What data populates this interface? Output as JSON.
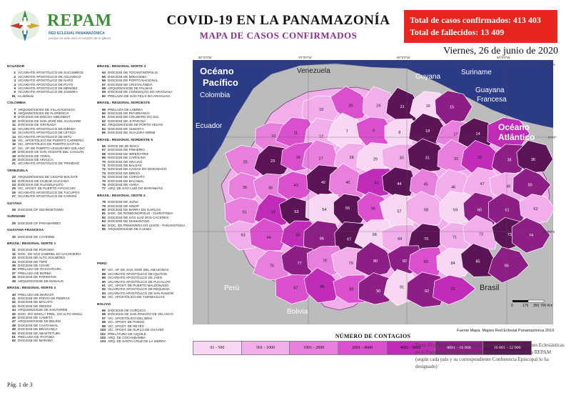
{
  "header": {
    "brand": "REPAM",
    "brand_sub": "RED ECLESIAL PANAMAZÓNICA",
    "brand_tag": "porque en todo está el corazón de la iglesia",
    "title": "COVID-19 EN LA PANAMAZONÍA",
    "subtitle": "MAPA DE CASOS CONFIRMADOS",
    "confirmed_label": "Total de casos confirmados:",
    "confirmed_value": "413 403",
    "deaths_label": "Total de fallecidos:",
    "deaths_value": "13 409",
    "date": "Viernes, 26 de junio de 2020"
  },
  "colors": {
    "ocean": "#2b3b86",
    "land_other": "#bcbcbc",
    "header_box": "#e8261f",
    "title_purple": "#8a2f8f",
    "bins": [
      "#f7d7f2",
      "#f1aeea",
      "#e87fdc",
      "#d94fcd",
      "#c02bb8",
      "#8c1e86",
      "#5b1455"
    ]
  },
  "list_col1": [
    {
      "region": "ECUADOR",
      "items": [
        {
          "n": "1",
          "name": "VICARIATO APOSTÓLICO DE SUCUMBÍOS"
        },
        {
          "n": "2",
          "name": "VICARIATO APOSTÓLICO DE AGUARICO"
        },
        {
          "n": "3",
          "name": "VICARIATO APOSTÓLICO DE NAPO"
        },
        {
          "n": "4",
          "name": "VICARIATO APOSTÓLICO DE PUYO"
        },
        {
          "n": "5",
          "name": "VICARIATO APOSTÓLICO DE MÉNDEZ"
        },
        {
          "n": "6",
          "name": "VICARIATO APOSTÓLICO DE ZAMORA"
        },
        {
          "n": "81",
          "name": "no definido"
        }
      ]
    },
    {
      "region": "COLOMBIA",
      "items": [
        {
          "n": "7",
          "name": "ARQUIDIÓCESIS DE VILLAVICENCIO"
        },
        {
          "n": "8",
          "name": "ARQUIDIÓCESIS DE FLORENCIA"
        },
        {
          "n": "9",
          "name": "DIÓCESIS DE MOCOA-SIBUNDOY"
        },
        {
          "n": "10",
          "name": "DIÓCESIS DE SAN JOSÉ DEL GUAVIARE"
        },
        {
          "n": "11",
          "name": "DIÓCESIS DE GRANADA"
        },
        {
          "n": "12",
          "name": "VICARIATO APOSTÓLICO DE INÍRIDA"
        },
        {
          "n": "13",
          "name": "VICARIATO APOSTÓLICO DE LETICIA"
        },
        {
          "n": "14",
          "name": "VICARIATO APOSTÓLICO DE MITÚ"
        },
        {
          "n": "15",
          "name": "VIC. APOSTÓLICO DE PUERTO CARREÑO"
        },
        {
          "n": "16",
          "name": "VIC. APOSTÓLICO DE PUERTO GAITÁN"
        },
        {
          "n": "17",
          "name": "VIC. AP. DE PUERTO LEGUÍZAMO-SOLANO"
        },
        {
          "n": "18",
          "name": "DIÓCESIS DE SAN VICENTE DEL CAGUÁN"
        },
        {
          "n": "19",
          "name": "DIÓCESIS DE YOPAL"
        },
        {
          "n": "20",
          "name": "DIÓCESIS DE ARAUCA"
        },
        {
          "n": "21",
          "name": "VICARIATO APOSTÓLICO DE TRINIDAD"
        }
      ]
    },
    {
      "region": "VENEZUELA",
      "items": [
        {
          "n": "22",
          "name": "ARQUIDIÓCESIS DE CIUDAD BOLÍVAR"
        },
        {
          "n": "23",
          "name": "DIÓCESIS DE CIUDAD GUAYANA"
        },
        {
          "n": "24",
          "name": "DIÓCESIS DE GUASDUALITO"
        },
        {
          "n": "25",
          "name": "VIC. APOST. DE PUERTO AYACUCHO"
        },
        {
          "n": "26",
          "name": "VICARIATO APOSTÓLICO DE TUCUPITA"
        },
        {
          "n": "27",
          "name": "VICARIATO APOSTÓLICO DE CARONÍ"
        }
      ]
    },
    {
      "region": "GUYANA",
      "items": [
        {
          "n": "28",
          "name": "DIOCESE OF GEORGETOWN"
        }
      ]
    },
    {
      "region": "SURINAME",
      "items": [
        {
          "n": "29",
          "name": "DIOCESE OF PARAMARIBO"
        }
      ]
    },
    {
      "region": "GUAYANA FRANCESA",
      "items": [
        {
          "n": "30",
          "name": "DIOCESE DE CAYENNE"
        }
      ]
    },
    {
      "region": "BRASIL: REGIONAL NORTE 1",
      "items": [
        {
          "n": "31",
          "name": "DIOCESE DE RORAIMA"
        },
        {
          "n": "32",
          "name": "DIOC. DE SÃO GABRIEL DA CACHOEIRA"
        },
        {
          "n": "33",
          "name": "DIOCESE DE ALTO SOLIMÕES"
        },
        {
          "n": "34",
          "name": "DIOCESE DE TEFÉ"
        },
        {
          "n": "35",
          "name": "DIOCESE DE COARI"
        },
        {
          "n": "36",
          "name": "PRELAZIA DE ITACOATIARA"
        },
        {
          "n": "37",
          "name": "PRELAZIA DE BORBA"
        },
        {
          "n": "38",
          "name": "DIOCESE DE PARINTINS"
        },
        {
          "n": "39",
          "name": "ARQUIDIOCESE DE MANAUS"
        }
      ]
    },
    {
      "region": "BRASIL: REGIONAL NORTE 2",
      "items": [
        {
          "n": "40",
          "name": "PRELAZIA DE MARAJÓ"
        },
        {
          "n": "41",
          "name": "DIOCESE DE PONTA DE PEDRAS"
        },
        {
          "n": "42",
          "name": "DIOCESE DE MACAPÁ"
        },
        {
          "n": "43",
          "name": "DIOCESE DE ÓBIDOS"
        },
        {
          "n": "44",
          "name": "ARQUIDIOCESE DE SANTARÉM"
        },
        {
          "n": "45",
          "name": "DIOC. DO XINGU / PREL. DO ALTO XINGU"
        },
        {
          "n": "46",
          "name": "DIOCESE DE CAMETÁ"
        },
        {
          "n": "47",
          "name": "ARQUIDIOCESE DE BELÉM"
        },
        {
          "n": "48",
          "name": "DIOCESE DE CASTANHAL"
        },
        {
          "n": "49",
          "name": "DIOCESE DE BRAGANÇA"
        },
        {
          "n": "50",
          "name": "DIOCESE DE ABAETETUBA"
        },
        {
          "n": "51",
          "name": "PRELAZIA DE ITAITUBA"
        },
        {
          "n": "52",
          "name": "DIOCESE DE MARABÁ"
        }
      ]
    }
  ],
  "list_col2": [
    {
      "region": "BRASIL: REGIONAL NORTE 3",
      "items": [
        {
          "n": "54",
          "name": "DIOCESE DE TOCANTINÓPOLIS"
        },
        {
          "n": "55",
          "name": "DIOCESE DE MIRACEMA"
        },
        {
          "n": "56",
          "name": "DIOCESE DE PORTO NACIONAL"
        },
        {
          "n": "57",
          "name": "DIOCESE DE CRISTALÂNDIA"
        },
        {
          "n": "58",
          "name": "ARQUIDIOCESE DE PALMAS"
        },
        {
          "n": "59",
          "name": "DIOCESE DE CONCEIÇÃO DO ARAGUAIA"
        },
        {
          "n": "60",
          "name": "PRELAZIA DE SÃO FÉLIX DO ARAGUAIA"
        }
      ]
    },
    {
      "region": "BRASIL: REGIONAL NOROESTE",
      "items": [
        {
          "n": "59",
          "name": "PRELAZIA DE LÁBREA"
        },
        {
          "n": "60",
          "name": "DIOCESE DE RIO BRANCO"
        },
        {
          "n": "61",
          "name": "DIOCESE DE CRUZEIRO DO SUL"
        },
        {
          "n": "62",
          "name": "DIOCESE DE JI-PARANÁ"
        },
        {
          "n": "63",
          "name": "ARQUIDIOCESE DE PORTO VELHO"
        },
        {
          "n": "64",
          "name": "DIOCESE DE HUMAITÁ"
        },
        {
          "n": "65",
          "name": "DIOCESE DE GUAJARÁ-MIRIM"
        }
      ]
    },
    {
      "region": "BRASIL: REGIONAL NORDESTE 5",
      "items": [
        {
          "n": "66",
          "name": "DIOCE DE ZÉ DOCA"
        },
        {
          "n": "67",
          "name": "DIOCESE DE PINHEIRO"
        },
        {
          "n": "68",
          "name": "DIOCESE DE IMPERATRIZ"
        },
        {
          "n": "69",
          "name": "DIOCESE DE CAROLINA"
        },
        {
          "n": "70",
          "name": "DIOCESE DE GRAJAÚ"
        },
        {
          "n": "71",
          "name": "DIOCESE DE BALSAS"
        },
        {
          "n": "72",
          "name": "DIOCESE DE CAXIAS DO MARANHÃO"
        },
        {
          "n": "73",
          "name": "DIOCESE DE BREJO"
        },
        {
          "n": "74",
          "name": "DIOCESE DE COROATÁ"
        },
        {
          "n": "75",
          "name": "DIOCESE DE BACABAL"
        },
        {
          "n": "76",
          "name": "DIOCESE DE VIANA"
        },
        {
          "n": "77",
          "name": "ARQ. DE SÃO LUIZ DO MARANHÃO"
        }
      ]
    },
    {
      "region": "BRASIL: REGIONAL OESTE 2",
      "items": [
        {
          "n": "78",
          "name": "DIOCESE DE JUÍNA"
        },
        {
          "n": "79",
          "name": "DIOCESE DE SINOP"
        },
        {
          "n": "80",
          "name": "DIOCESE DE BARRA DO GARÇAS"
        },
        {
          "n": "81",
          "name": "DIOC. DE RONDONÓPOLIS - GUIRATINGA"
        },
        {
          "n": "82",
          "name": "DIOCESE DE SÃO LUIZ DOS CÁCERES"
        },
        {
          "n": "83",
          "name": "DIOCESE DE DIAMANTINO"
        },
        {
          "n": "84",
          "name": "DIOC. DE PRIMAVERA DO LESTE - PARANATINGA"
        },
        {
          "n": "85",
          "name": "ARQUIDIOCESE DE CUIABÁ"
        }
      ]
    }
  ],
  "list_col3": [
    {
      "region": "PERÚ",
      "items": [
        {
          "n": "87",
          "name": "VIC. AP. DE SAN JOSÉ DEL AMAZONAS"
        },
        {
          "n": "88",
          "name": "VICARIATO APOSTÓLICO DE IQUITOS"
        },
        {
          "n": "89",
          "name": "VICARIATO APOSTÓLICO DE JAÉN"
        },
        {
          "n": "90",
          "name": "VICARIATO APOSTÓLICO DE PUCALLPA"
        },
        {
          "n": "91",
          "name": "VIC. APOST. DE PUERTO MALDONADO"
        },
        {
          "n": "92",
          "name": "VICARIATO APOSTÓLICO DE REQUENA"
        },
        {
          "n": "93",
          "name": "VICARIATO APOSTÓLICO DE SAN RAMÓN"
        },
        {
          "n": "94",
          "name": "VIC. APOSTÓLICO DE YURIMAGUAS"
        }
      ]
    },
    {
      "region": "BOLIVIA",
      "items": [
        {
          "n": "95",
          "name": "DIÓCESIS DE COROICO"
        },
        {
          "n": "96",
          "name": "DIÓCESIS DE SAN IGNACIO DE VELASCO"
        },
        {
          "n": "97",
          "name": "VIC. APOSTÓLICO DEL BENI"
        },
        {
          "n": "98",
          "name": "VIC. APOST. DE PANDO"
        },
        {
          "n": "99",
          "name": "VIC. APOST. DE REYES"
        },
        {
          "n": "100",
          "name": "VIC. APOST. DE ÑUFLO DE CHÁVEZ"
        },
        {
          "n": "101",
          "name": "PRELATURA DE AIQUILE"
        },
        {
          "n": "102",
          "name": "ARQ. DE COCHABAMBA"
        },
        {
          "n": "103",
          "name": "ARQ. DE SANTA CRUZ DE LA SIERRA"
        }
      ]
    }
  ],
  "map": {
    "labels": {
      "oceano_pacifico": "Océano Pacífico",
      "oceano_atlantico": "Océano Atlántico",
      "venezuela": "Venezuela",
      "colombia": "Colombia",
      "ecuador": "Ecuador",
      "guyana": "Guyana",
      "suriname": "Suriname",
      "guayana_francesa": "Guayana Francesa",
      "peru": "Perú",
      "bolivia": "Bolivia",
      "brasil": "Brasil"
    },
    "coords": {
      "lon1": "80°0'0\"W",
      "lon2": "70°0'0\"W",
      "lon3": "60°0'0\"W",
      "lon4": "50°0'0\"W",
      "lat1": "10°0'0\"N",
      "lat2": "0°0'0\"",
      "lat3": "10°0'0\"S"
    },
    "scale": {
      "s0": "0",
      "s1": "175",
      "s2": "350",
      "s3": "700 Km"
    },
    "region_numbers": [
      "19",
      "20",
      "24",
      "21",
      "16",
      "15",
      "10",
      "11",
      "12",
      "7",
      "9",
      "8",
      "18",
      "17",
      "14",
      "22",
      "25",
      "23",
      "26",
      "27",
      "28",
      "29",
      "30",
      "31",
      "32",
      "33",
      "35",
      "36",
      "39",
      "38",
      "43",
      "42",
      "40",
      "41",
      "44",
      "45",
      "46",
      "47",
      "49",
      "50",
      "51",
      "52",
      "53",
      "54",
      "55",
      "56",
      "57",
      "58",
      "59",
      "60",
      "61",
      "62",
      "63",
      "64",
      "65",
      "66",
      "67",
      "68",
      "69",
      "70",
      "71",
      "72",
      "73",
      "74",
      "75",
      "77",
      "78",
      "79",
      "80",
      "82",
      "83",
      "84",
      "85",
      "86",
      "87",
      "88",
      "89",
      "90",
      "91",
      "92",
      "93",
      "94",
      "95",
      "96",
      "97",
      "98",
      "100",
      "101",
      "102",
      "103",
      "104"
    ]
  },
  "legend": {
    "title": "NÚMERO DE CONTAGIOS",
    "bins": [
      "01 - 500",
      "501 - 1000",
      "1001 - 2000",
      "2001 - 4000",
      "4001 - 8000",
      "8001 - 16 000",
      "16 001 - 32 000"
    ]
  },
  "source": "Fuente Mapa: Mapeo Red Eclesial Panamazónica 2019.",
  "note": "Nota: El presente mapa contiene la división de jurisdicciones Eclesiásticas en la Panamazonía, que además son parte del proceso de la REPAM (según cada país y su correspondiente Conferencia Episcopal lo ha designado)",
  "page": "Pág. 1 de 3"
}
